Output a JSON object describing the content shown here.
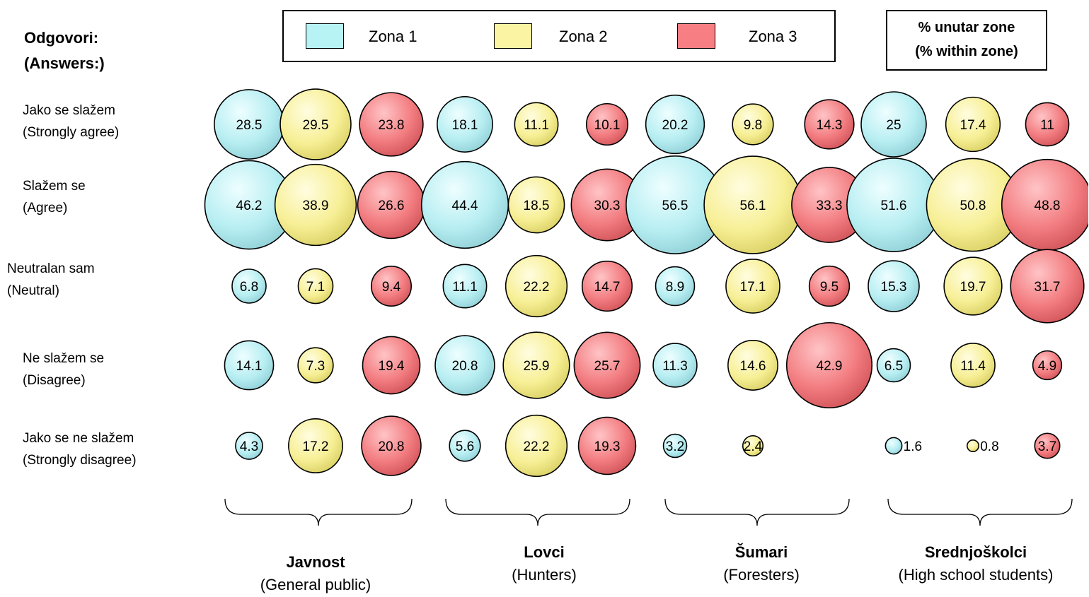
{
  "answers_title": [
    "Odgovori:",
    "(Answers:)"
  ],
  "unit_label": [
    "% unutar zone",
    "(% within zone)"
  ],
  "legend": [
    {
      "label": "Zona 1",
      "color": "#b7f2f5"
    },
    {
      "label": "Zona 2",
      "color": "#fbf5a3"
    },
    {
      "label": "Zona 3",
      "color": "#f77e82"
    }
  ],
  "row_labels": [
    [
      "Jako se slažem",
      "(Strongly agree)"
    ],
    [
      "Slažem se",
      "(Agree)"
    ],
    [
      "Neutralan sam",
      "(Neutral)"
    ],
    [
      "Ne slažem se",
      "(Disagree)"
    ],
    [
      "Jako se ne slažem",
      "(Strongly disagree)"
    ]
  ],
  "groups": [
    {
      "name": "Javnost",
      "subtitle": "(General public)"
    },
    {
      "name": "Lovci",
      "subtitle": "(Hunters)"
    },
    {
      "name": "Šumari",
      "subtitle": "(Foresters)"
    },
    {
      "name": "Srednjoškolci",
      "subtitle": "(High school students)"
    }
  ],
  "chart_data": {
    "type": "bubble",
    "unit": "% unutar zone (% within zone)",
    "categories": [
      "Jako se slažem (Strongly agree)",
      "Slažem se (Agree)",
      "Neutralan sam (Neutral)",
      "Ne slažem se (Disagree)",
      "Jako se ne slažem (Strongly disagree)"
    ],
    "series": [
      {
        "group": "Javnost",
        "zone": "Zona 1",
        "values": [
          28.5,
          46.2,
          6.8,
          14.1,
          4.3
        ]
      },
      {
        "group": "Javnost",
        "zone": "Zona 2",
        "values": [
          29.5,
          38.9,
          7.1,
          7.3,
          17.2
        ]
      },
      {
        "group": "Javnost",
        "zone": "Zona 3",
        "values": [
          23.8,
          26.6,
          9.4,
          19.4,
          20.8
        ]
      },
      {
        "group": "Lovci",
        "zone": "Zona 1",
        "values": [
          18.1,
          44.4,
          11.1,
          20.8,
          5.6
        ]
      },
      {
        "group": "Lovci",
        "zone": "Zona 2",
        "values": [
          11.1,
          18.5,
          22.2,
          25.9,
          22.2
        ]
      },
      {
        "group": "Lovci",
        "zone": "Zona 3",
        "values": [
          10.1,
          30.3,
          14.7,
          25.7,
          19.3
        ]
      },
      {
        "group": "Šumari",
        "zone": "Zona 1",
        "values": [
          20.2,
          56.5,
          8.9,
          11.3,
          3.2
        ]
      },
      {
        "group": "Šumari",
        "zone": "Zona 2",
        "values": [
          9.8,
          56.1,
          17.1,
          14.6,
          2.4
        ]
      },
      {
        "group": "Šumari",
        "zone": "Zona 3",
        "values": [
          14.3,
          33.3,
          9.5,
          42.9,
          null
        ]
      },
      {
        "group": "Srednjoškolci",
        "zone": "Zona 1",
        "values": [
          25,
          51.6,
          15.3,
          6.5,
          1.6
        ]
      },
      {
        "group": "Srednjoškolci",
        "zone": "Zona 2",
        "values": [
          17.4,
          50.8,
          19.7,
          11.4,
          0.8
        ]
      },
      {
        "group": "Srednjoškolci",
        "zone": "Zona 3",
        "values": [
          11,
          48.8,
          31.7,
          4.9,
          3.7
        ]
      }
    ]
  }
}
